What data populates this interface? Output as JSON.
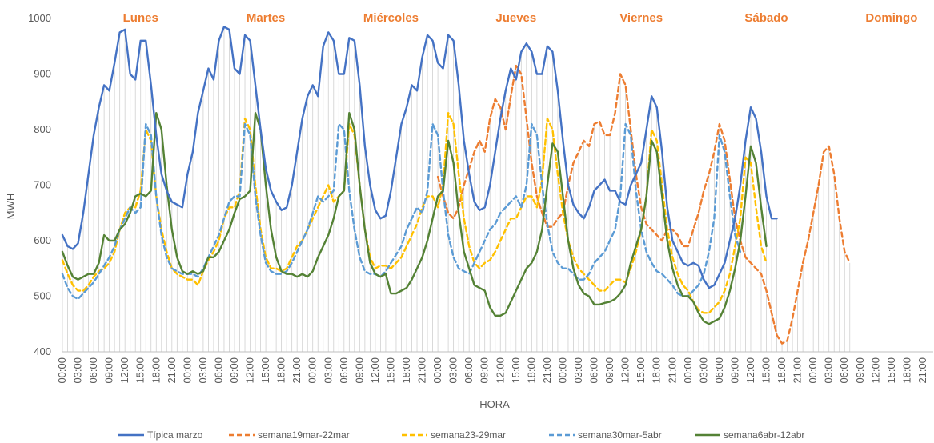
{
  "chart_data": {
    "type": "line",
    "xlabel": "HORA",
    "ylabel": "MWH",
    "ylim": [
      400,
      1000
    ],
    "yticks": [
      400,
      500,
      600,
      700,
      800,
      900,
      1000
    ],
    "x_tick_labels": [
      "00:00",
      "03:00",
      "06:00",
      "09:00",
      "12:00",
      "15:00",
      "18:00",
      "21:00"
    ],
    "points_per_day": 24,
    "days": [
      "Lunes",
      "Martes",
      "Miércoles",
      "Jueves",
      "Viernes",
      "Sábado",
      "Domingo"
    ],
    "day_label_color": "#ED7D31",
    "grid": false,
    "legend_position": "bottom",
    "series": [
      {
        "name": "Típica marzo",
        "color": "#4472C4",
        "dash": "solid",
        "values": [
          610,
          590,
          585,
          595,
          650,
          720,
          790,
          840,
          880,
          870,
          920,
          975,
          980,
          900,
          890,
          960,
          960,
          880,
          790,
          720,
          690,
          670,
          665,
          660,
          720,
          760,
          830,
          870,
          910,
          890,
          960,
          985,
          980,
          910,
          900,
          970,
          960,
          880,
          800,
          730,
          690,
          670,
          655,
          660,
          700,
          760,
          820,
          860,
          880,
          860,
          950,
          975,
          960,
          900,
          900,
          965,
          960,
          880,
          770,
          700,
          655,
          640,
          645,
          690,
          750,
          810,
          840,
          880,
          870,
          930,
          970,
          960,
          920,
          910,
          970,
          960,
          880,
          780,
          720,
          670,
          655,
          660,
          700,
          760,
          820,
          870,
          910,
          890,
          940,
          955,
          940,
          900,
          900,
          950,
          940,
          870,
          780,
          700,
          665,
          650,
          640,
          660,
          690,
          700,
          710,
          690,
          690,
          670,
          665,
          700,
          720,
          740,
          800,
          860,
          840,
          760,
          660,
          600,
          580,
          560,
          555,
          560,
          555,
          530,
          515,
          520,
          540,
          560,
          600,
          640,
          700,
          780,
          840,
          820,
          760,
          680,
          640,
          640
        ]
      },
      {
        "name": "semana19mar-22mar",
        "color": "#ED7D31",
        "dash": "dashed",
        "values": [
          null,
          null,
          null,
          null,
          null,
          null,
          null,
          null,
          null,
          null,
          null,
          null,
          null,
          null,
          null,
          null,
          null,
          null,
          null,
          null,
          null,
          null,
          null,
          null,
          null,
          null,
          null,
          null,
          null,
          null,
          null,
          null,
          null,
          null,
          null,
          null,
          null,
          null,
          null,
          null,
          null,
          null,
          null,
          null,
          null,
          null,
          null,
          null,
          null,
          null,
          null,
          null,
          null,
          null,
          null,
          null,
          null,
          null,
          null,
          null,
          null,
          null,
          null,
          null,
          null,
          null,
          null,
          null,
          null,
          null,
          null,
          null,
          715,
          680,
          650,
          640,
          660,
          700,
          730,
          760,
          780,
          760,
          820,
          855,
          840,
          800,
          860,
          915,
          900,
          820,
          740,
          680,
          650,
          625,
          625,
          640,
          650,
          700,
          740,
          760,
          780,
          770,
          810,
          815,
          790,
          790,
          830,
          900,
          880,
          800,
          720,
          660,
          630,
          620,
          610,
          600,
          620,
          620,
          610,
          590,
          590,
          620,
          650,
          690,
          720,
          760,
          810,
          780,
          710,
          640,
          600,
          570,
          560,
          550,
          540,
          510,
          470,
          430,
          415,
          420,
          460,
          510,
          560,
          600,
          650,
          700,
          760,
          770,
          720,
          640,
          580,
          560
        ]
      },
      {
        "name": "semana23-29mar",
        "color": "#FFC000",
        "dash": "dashed",
        "values": [
          565,
          540,
          520,
          510,
          510,
          520,
          535,
          545,
          550,
          560,
          580,
          620,
          650,
          660,
          660,
          690,
          800,
          780,
          680,
          620,
          580,
          550,
          540,
          535,
          530,
          530,
          520,
          545,
          565,
          580,
          600,
          640,
          660,
          660,
          690,
          820,
          800,
          700,
          620,
          570,
          550,
          550,
          545,
          550,
          570,
          590,
          600,
          620,
          640,
          660,
          680,
          700,
          670,
          680,
          690,
          810,
          790,
          700,
          620,
          570,
          550,
          555,
          555,
          550,
          560,
          570,
          590,
          610,
          630,
          660,
          680,
          680,
          660,
          700,
          830,
          810,
          720,
          640,
          590,
          560,
          550,
          560,
          565,
          580,
          600,
          620,
          640,
          640,
          660,
          680,
          680,
          660,
          710,
          820,
          800,
          720,
          650,
          600,
          570,
          550,
          540,
          530,
          520,
          510,
          510,
          520,
          530,
          530,
          525,
          550,
          580,
          620,
          680,
          800,
          780,
          700,
          620,
          570,
          540,
          520,
          510,
          490,
          475,
          470,
          470,
          480,
          490,
          510,
          540,
          590,
          640,
          750,
          740,
          660,
          590,
          560
        ]
      },
      {
        "name": "semana30mar-5abr",
        "color": "#5B9BD5",
        "dash": "dashed",
        "values": [
          540,
          515,
          500,
          495,
          505,
          515,
          525,
          540,
          555,
          570,
          590,
          620,
          640,
          660,
          650,
          660,
          810,
          790,
          680,
          610,
          570,
          550,
          545,
          540,
          540,
          540,
          535,
          550,
          570,
          590,
          610,
          640,
          670,
          680,
          680,
          810,
          790,
          680,
          610,
          560,
          545,
          540,
          540,
          545,
          560,
          580,
          600,
          620,
          650,
          680,
          670,
          680,
          690,
          810,
          800,
          690,
          620,
          570,
          545,
          540,
          540,
          535,
          545,
          560,
          575,
          590,
          620,
          640,
          660,
          650,
          690,
          810,
          790,
          690,
          610,
          570,
          550,
          545,
          540,
          560,
          580,
          600,
          620,
          630,
          650,
          660,
          670,
          680,
          660,
          700,
          810,
          790,
          700,
          630,
          580,
          560,
          550,
          550,
          540,
          530,
          530,
          540,
          560,
          570,
          580,
          600,
          620,
          680,
          810,
          790,
          690,
          620,
          580,
          560,
          545,
          540,
          530,
          520,
          505,
          500,
          500,
          510,
          520,
          540,
          580,
          640,
          790,
          760,
          680,
          610,
          580
        ]
      },
      {
        "name": "semana6abr-12abr",
        "color": "#548235",
        "dash": "solid",
        "values": [
          580,
          555,
          535,
          530,
          535,
          540,
          540,
          560,
          610,
          600,
          600,
          620,
          630,
          650,
          680,
          685,
          680,
          690,
          830,
          800,
          700,
          620,
          570,
          545,
          540,
          545,
          540,
          545,
          570,
          570,
          580,
          600,
          620,
          650,
          675,
          680,
          690,
          830,
          800,
          700,
          620,
          570,
          545,
          540,
          540,
          535,
          540,
          535,
          545,
          570,
          590,
          610,
          640,
          680,
          690,
          830,
          800,
          700,
          620,
          560,
          540,
          535,
          540,
          505,
          505,
          510,
          515,
          530,
          550,
          570,
          600,
          640,
          680,
          690,
          780,
          740,
          650,
          580,
          550,
          520,
          515,
          510,
          480,
          465,
          465,
          470,
          490,
          510,
          530,
          550,
          560,
          580,
          620,
          700,
          775,
          760,
          680,
          600,
          550,
          520,
          505,
          500,
          485,
          485,
          488,
          490,
          495,
          505,
          520,
          560,
          590,
          620,
          680,
          780,
          760,
          680,
          600,
          550,
          520,
          500,
          500,
          490,
          470,
          455,
          450,
          455,
          460,
          480,
          510,
          550,
          600,
          680,
          770,
          740,
          660,
          590
        ]
      }
    ]
  }
}
